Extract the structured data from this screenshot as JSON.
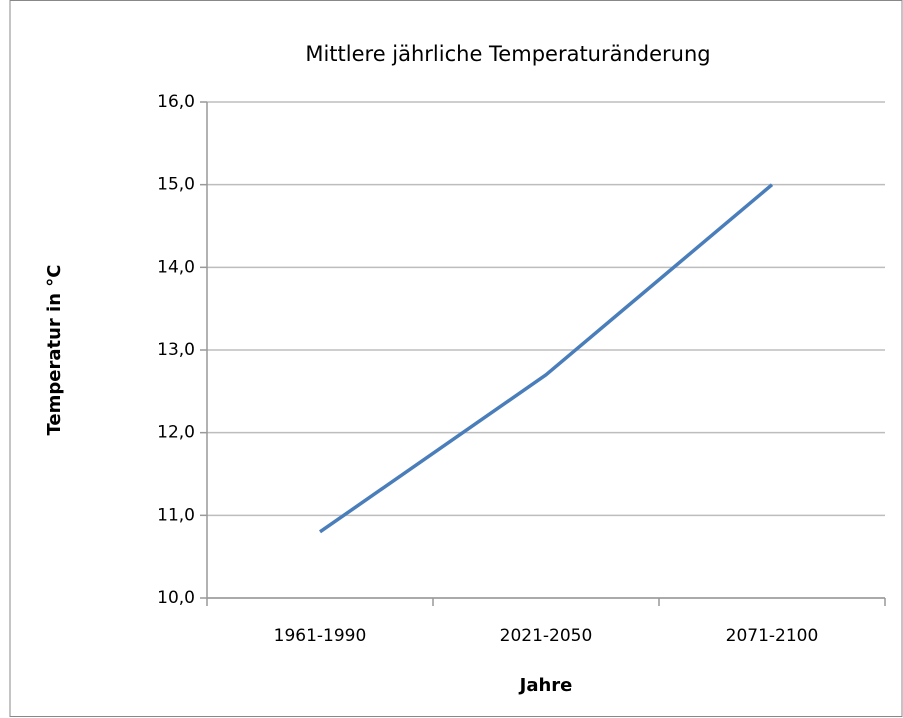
{
  "chart_data": {
    "type": "line",
    "title": "Mittlere jährliche Temperaturänderung",
    "x_label": "Jahre",
    "y_label": "Temperatur in °C",
    "categories": [
      "1961-1990",
      "2021-2050",
      "2071-2100"
    ],
    "series": [
      {
        "name": "Temperatur",
        "color": "#4a7ebb",
        "values": [
          10.8,
          12.7,
          15.0
        ]
      }
    ],
    "ylim": [
      10,
      16
    ],
    "yticks": [
      {
        "value": 10,
        "label": "10,0"
      },
      {
        "value": 11,
        "label": "11,0"
      },
      {
        "value": 12,
        "label": "12,0"
      },
      {
        "value": 13,
        "label": "13,0"
      },
      {
        "value": 14,
        "label": "14,0"
      },
      {
        "value": 15,
        "label": "15,0"
      },
      {
        "value": 16,
        "label": "16,0"
      }
    ],
    "grid": true,
    "legend": false
  }
}
